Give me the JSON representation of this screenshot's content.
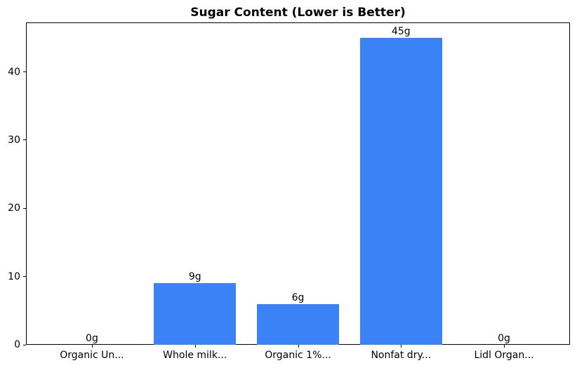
{
  "chart_data": {
    "type": "bar",
    "title": "Sugar Content (Lower is Better)",
    "categories": [
      "Organic Un...",
      "Whole milk...",
      "Organic 1%...",
      "Nonfat dry...",
      "Lidl Organ..."
    ],
    "values": [
      0,
      9,
      6,
      45,
      0
    ],
    "bar_labels": [
      "0g",
      "9g",
      "6g",
      "45g",
      "0g"
    ],
    "xlabel": "",
    "ylabel": "",
    "yticks": [
      0,
      10,
      20,
      30,
      40
    ],
    "ylim": [
      0,
      47.25
    ],
    "xlim": [
      -0.64,
      4.64
    ],
    "bar_width": 0.8,
    "grid": false,
    "legend": null,
    "colors": {
      "bar_fill": "#3b82f6",
      "axis": "#000000",
      "text": "#000000",
      "background": "#ffffff"
    }
  }
}
